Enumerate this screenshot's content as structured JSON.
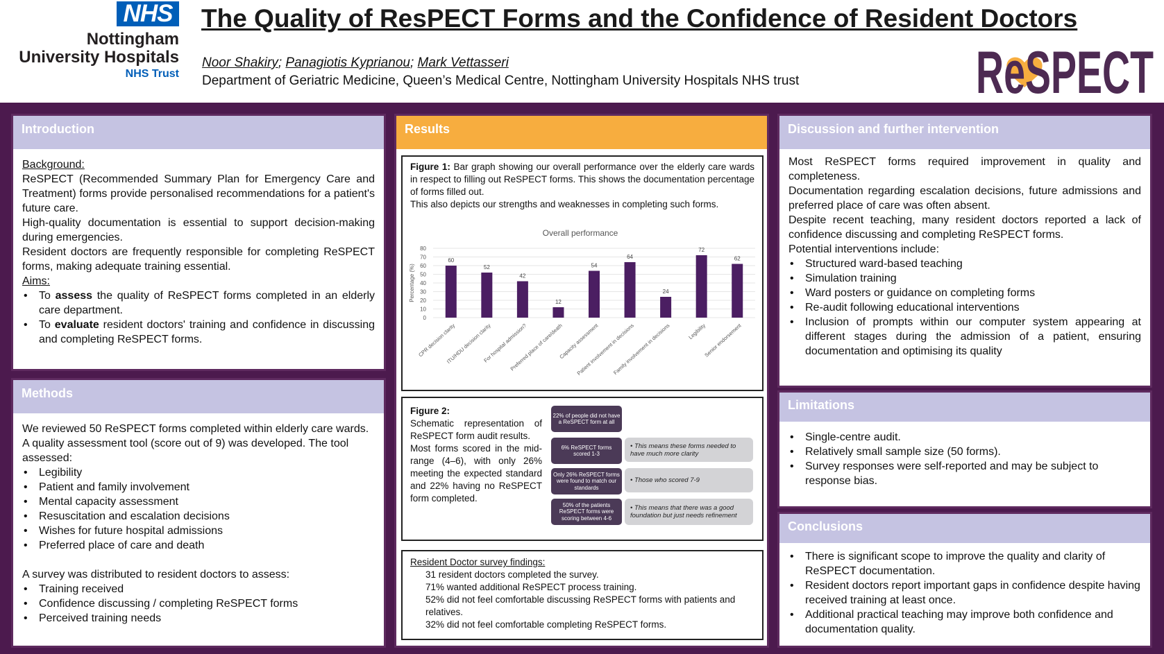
{
  "header": {
    "nhs_logo": "NHS",
    "org_line1": "Nottingham",
    "org_line2": "University Hospitals",
    "org_line3": "NHS Trust",
    "title": "The Quality of ResPECT Forms and the Confidence of Resident Doctors",
    "authors": [
      "Noor Shakiry",
      "Panagiotis Kyprianou",
      "Mark Vettasseri"
    ],
    "department": "Department of Geriatric Medicine, Queen’s Medical Centre, Nottingham University Hospitals NHS trust",
    "respect_logo": "ReSPECT"
  },
  "introduction": {
    "heading": "Introduction",
    "background_label": "Background:",
    "p1": "ReSPECT (Recommended Summary Plan for Emergency Care and Treatment) forms provide personalised recommendations for a patient's future care.",
    "p2": "High-quality documentation is essential to support decision-making during emergencies.",
    "p3": "Resident doctors are frequently responsible for completing ReSPECT forms, making adequate training essential.",
    "aims_label": "Aims:",
    "aim1_pre": "To ",
    "aim1_bold": "assess",
    "aim1_post": " the quality of ReSPECT forms completed in an elderly care department.",
    "aim2_pre": "To ",
    "aim2_bold": "evaluate",
    "aim2_post": " resident doctors' training and confidence in discussing and completing ReSPECT forms."
  },
  "methods": {
    "heading": "Methods",
    "p1": "We reviewed 50 ReSPECT forms completed within elderly care wards. A quality assessment tool (score out of 9) was developed. The tool assessed:",
    "items": [
      "Legibility",
      "Patient and family involvement",
      "Mental capacity assessment",
      "Resuscitation and escalation decisions",
      "Wishes for future hospital admissions",
      "Preferred place of care and death"
    ],
    "p2": "A survey was distributed to resident doctors to assess:",
    "survey_items": [
      "Training received",
      "Confidence discussing / completing ReSPECT forms",
      "Perceived training needs"
    ]
  },
  "results": {
    "heading": "Results",
    "fig1_label": "Figure 1:",
    "fig1_text": " Bar graph showing our overall performance over the elderly care wards in respect to filling out ReSPECT forms. This shows the documentation percentage of forms filled out.",
    "fig1_text2": "This also depicts our strengths and weaknesses in completing such forms.",
    "fig2_label": "Figure 2:",
    "fig2_text": "Schematic representation of ReSPECT form audit results.",
    "fig2_text2": "Most forms scored in the mid-range (4–6), with only 26% meeting the expected standard and 22% having no ReSPECT form completed.",
    "schematic": {
      "boxes": [
        "22% of people did not have a ReSPECT form at all",
        "6% ReSPECT forms scored 1-3",
        "Only 26% ReSPECT forms were found to match our standards",
        "50% of the patients ReSPECT forms were scoring between 4-6"
      ],
      "notes": [
        "• This means these forms needed to have much more clarity",
        "• Those who scored 7-9",
        "• This means that there was a good foundation but just needs refinement"
      ]
    },
    "survey_heading": "Resident Doctor survey findings:",
    "survey_items": [
      "31 resident doctors completed the survey.",
      "71% wanted additional ReSPECT process training.",
      "52% did not feel comfortable discussing ReSPECT forms with patients and relatives.",
      "32% did not feel comfortable completing ReSPECT forms."
    ]
  },
  "chart_data": {
    "type": "bar",
    "title": "Overall performance",
    "ylabel": "Percentage (%)",
    "xlabel": "",
    "categories": [
      "CPR decision clarity",
      "ITU/HDU decision clarity",
      "For hospital admission?",
      "Preferred place of care/death",
      "Capacity assessment",
      "Patient involvement in decisions",
      "Family involvement in decisions",
      "Legibility",
      "Senior endorsement"
    ],
    "values": [
      60,
      52,
      42,
      12,
      54,
      64,
      24,
      72,
      62
    ],
    "ylim": [
      0,
      80
    ],
    "yticks": [
      "0",
      "10",
      "20",
      "30",
      "40",
      "50",
      "60",
      "70",
      "80"
    ],
    "grid": true,
    "bar_color": "#4b1e62"
  },
  "discussion": {
    "heading": "Discussion and further intervention",
    "p1": "Most ReSPECT forms required improvement in quality and completeness.",
    "p2": "Documentation regarding escalation decisions, future admissions and preferred place of care was often absent.",
    "p3": "Despite recent teaching, many resident doctors reported a lack of confidence discussing and completing ReSPECT forms.",
    "p4": "Potential interventions include:",
    "items": [
      "Structured ward-based teaching",
      "Simulation training",
      "Ward posters or guidance on completing forms",
      "Re-audit following educational interventions",
      "Inclusion of prompts within our computer system appearing at different stages during the admission of a patient, ensuring documentation and optimising its quality"
    ]
  },
  "limitations": {
    "heading": "Limitations",
    "items": [
      "Single-centre audit.",
      "Relatively small sample size (50 forms).",
      "Survey responses were self-reported and may be subject to response bias."
    ]
  },
  "conclusions": {
    "heading": "Conclusions",
    "items": [
      "There is significant scope to improve the quality and clarity of ReSPECT documentation.",
      "Resident doctors report important gaps in confidence despite having received training at least once.",
      "Additional practical teaching may improve both confidence and documentation quality."
    ]
  }
}
